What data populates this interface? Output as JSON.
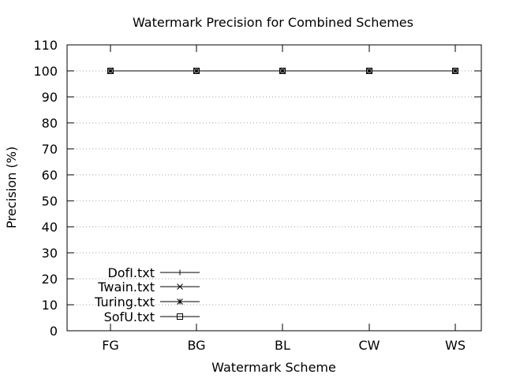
{
  "chart_data": {
    "type": "line",
    "title": "Watermark Precision for Combined Schemes",
    "xlabel": "Watermark Scheme",
    "ylabel": "Precision (%)",
    "categories": [
      "FG",
      "BG",
      "BL",
      "CW",
      "WS"
    ],
    "ylim": [
      0,
      110
    ],
    "yticks": [
      0,
      10,
      20,
      30,
      40,
      50,
      60,
      70,
      80,
      90,
      100,
      110
    ],
    "grid": true,
    "legend_position": "bottom-left",
    "series": [
      {
        "name": "DofI.txt",
        "marker": "plus",
        "values": [
          100,
          100,
          100,
          100,
          100
        ]
      },
      {
        "name": "Twain.txt",
        "marker": "cross",
        "values": [
          100,
          100,
          100,
          100,
          100
        ]
      },
      {
        "name": "Turing.txt",
        "marker": "star",
        "values": [
          100,
          100,
          100,
          100,
          100
        ]
      },
      {
        "name": "SofU.txt",
        "marker": "square",
        "values": [
          100,
          100,
          100,
          100,
          100
        ]
      }
    ],
    "colors": {
      "line": "#000000",
      "grid": "#a0a0a0"
    }
  }
}
